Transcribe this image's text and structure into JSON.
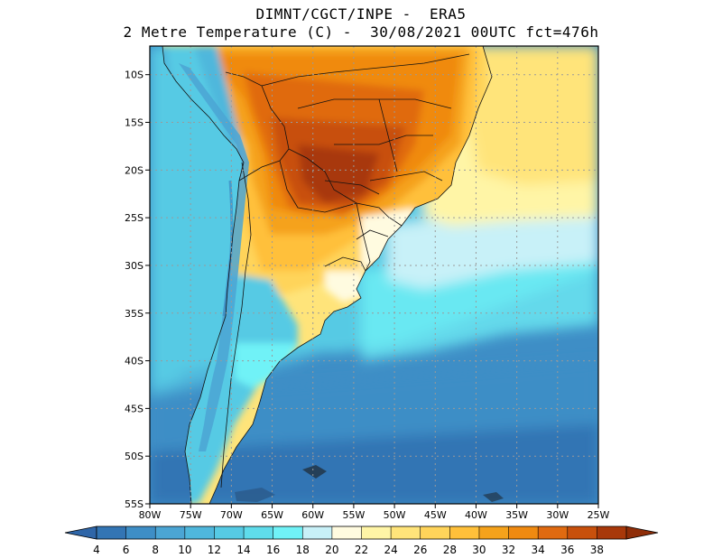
{
  "title_line1": "DIMNT/CGCT/INPE -  ERA5",
  "title_line2": "2 Metre Temperature (C) -  30/08/2021 00UTC fct=476h",
  "map": {
    "region": "South America (southern)",
    "lon_range": [
      -80,
      -25
    ],
    "lat_range": [
      -55,
      -7
    ],
    "lat_ticks": [
      {
        "value": -10,
        "label": "10S"
      },
      {
        "value": -15,
        "label": "15S"
      },
      {
        "value": -20,
        "label": "20S"
      },
      {
        "value": -25,
        "label": "25S"
      },
      {
        "value": -30,
        "label": "30S"
      },
      {
        "value": -35,
        "label": "35S"
      },
      {
        "value": -40,
        "label": "40S"
      },
      {
        "value": -45,
        "label": "45S"
      },
      {
        "value": -50,
        "label": "50S"
      },
      {
        "value": -55,
        "label": "55S"
      }
    ],
    "lon_ticks": [
      {
        "value": -80,
        "label": "80W"
      },
      {
        "value": -75,
        "label": "75W"
      },
      {
        "value": -70,
        "label": "70W"
      },
      {
        "value": -65,
        "label": "65W"
      },
      {
        "value": -60,
        "label": "60W"
      },
      {
        "value": -55,
        "label": "55W"
      },
      {
        "value": -50,
        "label": "50W"
      },
      {
        "value": -45,
        "label": "45W"
      },
      {
        "value": -40,
        "label": "40W"
      },
      {
        "value": -35,
        "label": "35W"
      },
      {
        "value": -30,
        "label": "30W"
      },
      {
        "value": -25,
        "label": "25W"
      }
    ]
  },
  "colorbar": {
    "labels": [
      "4",
      "6",
      "8",
      "10",
      "12",
      "14",
      "16",
      "18",
      "20",
      "22",
      "24",
      "26",
      "28",
      "30",
      "32",
      "34",
      "36",
      "38"
    ],
    "colors": [
      "#3375b4",
      "#3e8ec6",
      "#4ba5d4",
      "#4fb7dc",
      "#56cae4",
      "#5fdceb",
      "#70f2f7",
      "#c8f1f8",
      "#fffbe0",
      "#fff5a6",
      "#ffe47a",
      "#ffd45a",
      "#ffc03a",
      "#f5a21b",
      "#f08a10",
      "#e06a10",
      "#c8500c",
      "#a8380a"
    ],
    "low_color": "#2f66a8",
    "high_color": "#8f2d08"
  }
}
